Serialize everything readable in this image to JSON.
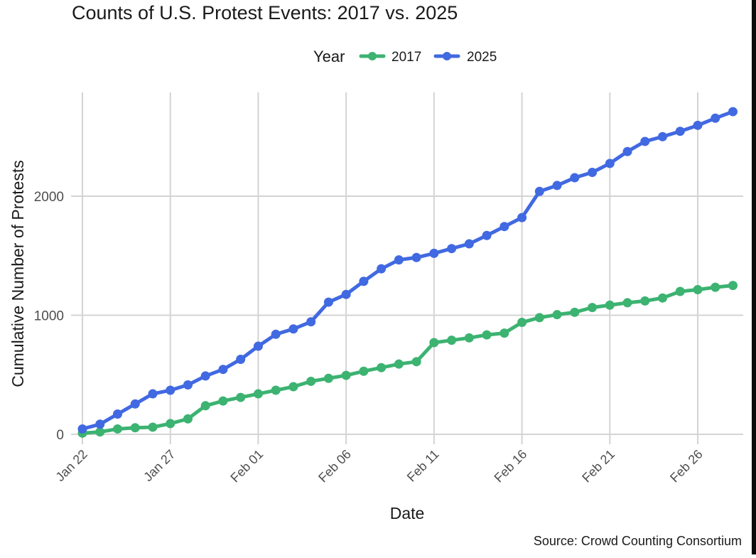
{
  "chart_data": {
    "type": "line",
    "title": "Counts of U.S. Protest Events: 2017 vs. 2025",
    "xlabel": "Date",
    "ylabel": "Cumulative Number of Protests",
    "caption": "Source: Crowd Counting Consortium",
    "legend": {
      "title": "Year",
      "placement": "top"
    },
    "grid": true,
    "xlim": [
      0,
      37
    ],
    "ylim": [
      -30,
      2750
    ],
    "x_ticks": [
      {
        "day": 0,
        "label": "Jan 22"
      },
      {
        "day": 5,
        "label": "Jan 27"
      },
      {
        "day": 10,
        "label": "Feb 01"
      },
      {
        "day": 15,
        "label": "Feb 06"
      },
      {
        "day": 20,
        "label": "Feb 11"
      },
      {
        "day": 25,
        "label": "Feb 16"
      },
      {
        "day": 30,
        "label": "Feb 21"
      },
      {
        "day": 35,
        "label": "Feb 26"
      }
    ],
    "y_ticks": [
      {
        "value": 0,
        "label": "0"
      },
      {
        "value": 1000,
        "label": "1000"
      },
      {
        "value": 2000,
        "label": "2000"
      }
    ],
    "x": [
      0,
      1,
      2,
      3,
      4,
      5,
      6,
      7,
      8,
      9,
      10,
      11,
      12,
      13,
      14,
      15,
      16,
      17,
      18,
      19,
      20,
      21,
      22,
      23,
      24,
      25,
      26,
      27,
      28,
      29,
      30,
      31,
      32,
      33,
      34,
      35,
      36,
      37
    ],
    "series": [
      {
        "name": "2017",
        "color": "#3cb371",
        "values": [
          10,
          20,
          45,
          55,
          60,
          90,
          130,
          240,
          280,
          310,
          340,
          370,
          400,
          445,
          470,
          495,
          530,
          560,
          590,
          610,
          770,
          790,
          810,
          835,
          850,
          940,
          980,
          1005,
          1025,
          1065,
          1085,
          1105,
          1120,
          1145,
          1200,
          1215,
          1235,
          1250
        ]
      },
      {
        "name": "2025",
        "color": "#4169e1",
        "values": [
          45,
          85,
          170,
          255,
          340,
          370,
          415,
          490,
          545,
          630,
          740,
          840,
          885,
          945,
          1110,
          1175,
          1285,
          1390,
          1465,
          1485,
          1520,
          1560,
          1600,
          1670,
          1745,
          1820,
          2040,
          2090,
          2155,
          2200,
          2275,
          2375,
          2460,
          2500,
          2545,
          2595,
          2655,
          2710
        ]
      }
    ]
  }
}
